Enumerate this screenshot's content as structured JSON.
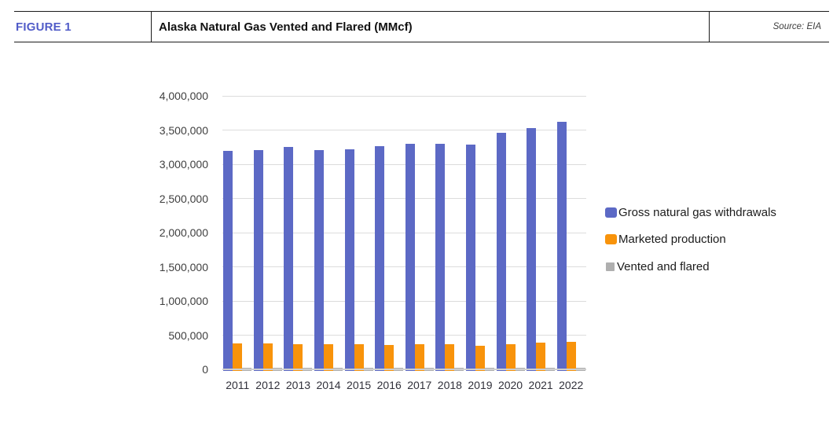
{
  "header": {
    "figure_label": "FIGURE 1",
    "title": "Alaska Natural Gas Vented and Flared (MMcf)",
    "source": "Source: EIA"
  },
  "colors": {
    "figure_label_text": "#515CC8",
    "gridline": "#DCDCDC",
    "axis_line": "#CFCFCF",
    "series_blue": "#5C69C5",
    "series_orange": "#F8930B",
    "series_gray": "#AFAFAF"
  },
  "chart_data": {
    "type": "bar",
    "title": "Alaska Natural Gas Vented and Flared (MMcf)",
    "unit": "MMcf",
    "categories": [
      "2011",
      "2012",
      "2013",
      "2014",
      "2015",
      "2016",
      "2017",
      "2018",
      "2019",
      "2020",
      "2021",
      "2022"
    ],
    "series": [
      {
        "name": "Gross natural gas withdrawals",
        "color": "#5C69C5",
        "values": [
          3195000,
          3205000,
          3255000,
          3210000,
          3215000,
          3270000,
          3295000,
          3295000,
          3290000,
          3460000,
          3530000,
          3620000
        ]
      },
      {
        "name": "Marketed production",
        "color": "#F8930B",
        "values": [
          383000,
          382000,
          364000,
          371000,
          364000,
          353000,
          364000,
          364000,
          349000,
          364000,
          387000,
          406000
        ]
      },
      {
        "name": "Vented and flared",
        "color": "#AFAFAF",
        "values": [
          20000,
          20000,
          19000,
          19000,
          19000,
          18000,
          19000,
          19000,
          18000,
          19000,
          21000,
          23000
        ]
      }
    ],
    "ylim": [
      0,
      4000000
    ],
    "ytick_interval": 500000,
    "ytick_labels": [
      "0",
      "500,000",
      "1,000,000",
      "1,500,000",
      "2,000,000",
      "2,500,000",
      "3,000,000",
      "3,500,000",
      "4,000,000"
    ],
    "grid": true,
    "legend_position": "right",
    "xlabel": "",
    "ylabel": ""
  }
}
